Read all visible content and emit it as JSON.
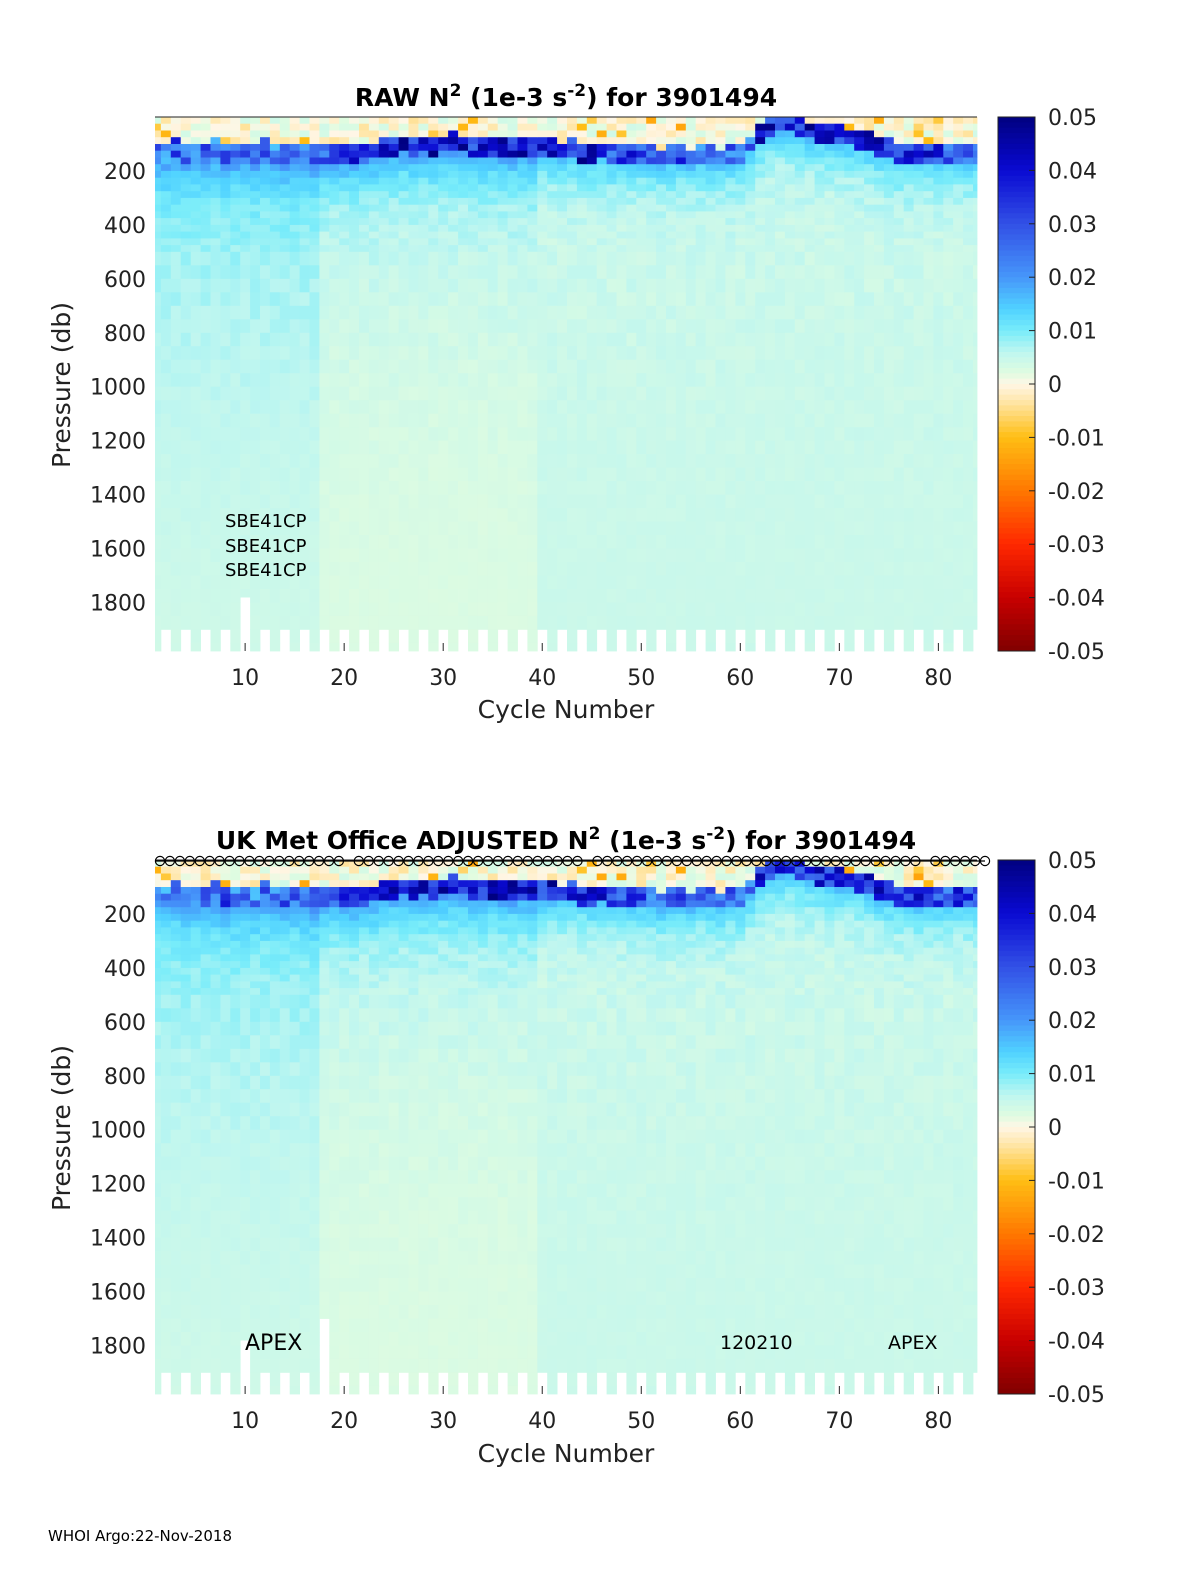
{
  "chart_data": [
    {
      "type": "heatmap",
      "title_parts": [
        "RAW N",
        "2",
        " (1e-3 s",
        "-2",
        ") for 3901494"
      ],
      "xlabel": "Cycle Number",
      "ylabel": "Pressure (db)",
      "xlim": [
        0.9,
        83.9
      ],
      "ylim": [
        0,
        1980
      ],
      "y_reversed": true,
      "xticks": [
        10,
        20,
        30,
        40,
        50,
        60,
        70,
        80
      ],
      "yticks": [
        200,
        400,
        600,
        800,
        1000,
        1200,
        1400,
        1600,
        1800
      ],
      "colorbar": {
        "range": [
          -0.05,
          0.05
        ],
        "ticks": [
          "0.05",
          "0.04",
          "0.03",
          "0.02",
          "0.01",
          "0",
          "-0.01",
          "-0.02",
          "-0.03",
          "-0.04",
          "-0.05"
        ]
      },
      "annotations": [
        "SBE41CP",
        "SBE41CP",
        "SBE41CP"
      ],
      "short_profiles": {
        "10": 1780
      },
      "markers": false
    },
    {
      "type": "heatmap",
      "title_parts": [
        "UK Met Office  ADJUSTED N",
        "2",
        " (1e-3 s",
        "-2",
        ") for 3901494"
      ],
      "xlabel": "Cycle Number",
      "ylabel": "Pressure (db)",
      "xlim": [
        0.9,
        83.9
      ],
      "ylim": [
        0,
        1980
      ],
      "y_reversed": true,
      "xticks": [
        10,
        20,
        30,
        40,
        50,
        60,
        70,
        80
      ],
      "yticks": [
        200,
        400,
        600,
        800,
        1000,
        1200,
        1400,
        1600,
        1800
      ],
      "colorbar": {
        "range": [
          -0.05,
          0.05
        ],
        "ticks": [
          "0.05",
          "0.04",
          "0.03",
          "0.02",
          "0.01",
          "0",
          "-0.01",
          "-0.02",
          "-0.03",
          "-0.04",
          "-0.05"
        ]
      },
      "annotations": [
        "APEX",
        "120210",
        "APEX"
      ],
      "short_profiles": {
        "10": 1780,
        "18": 1700
      },
      "markers": true,
      "missing_markers": [
        20,
        44,
        78
      ]
    }
  ],
  "profile_model": {
    "cycles": 84,
    "pycnocline_pressure_db": [
      125,
      130,
      120,
      135,
      125,
      130,
      120,
      140,
      130,
      125,
      135,
      120,
      130,
      140,
      125,
      130,
      140,
      135,
      130,
      135,
      140,
      130,
      125,
      110,
      105,
      100,
      110,
      100,
      105,
      100,
      95,
      100,
      105,
      110,
      105,
      110,
      115,
      110,
      115,
      120,
      120,
      125,
      120,
      130,
      135,
      125,
      140,
      130,
      140,
      135,
      140,
      150,
      145,
      140,
      150,
      140,
      145,
      150,
      140,
      135,
      100,
      60,
      30,
      25,
      25,
      40,
      50,
      55,
      60,
      70,
      75,
      85,
      95,
      110,
      120,
      130,
      135,
      140,
      135,
      140,
      140,
      130,
      140,
      135
    ],
    "pycnocline_peak_n2": [
      0.035,
      0.03,
      0.04,
      0.035,
      0.03,
      0.035,
      0.03,
      0.04,
      0.03,
      0.035,
      0.03,
      0.035,
      0.03,
      0.04,
      0.035,
      0.03,
      0.035,
      0.04,
      0.035,
      0.04,
      0.045,
      0.04,
      0.045,
      0.05,
      0.05,
      0.05,
      0.05,
      0.05,
      0.05,
      0.05,
      0.05,
      0.05,
      0.05,
      0.05,
      0.05,
      0.05,
      0.05,
      0.05,
      0.05,
      0.05,
      0.05,
      0.05,
      0.05,
      0.05,
      0.05,
      0.045,
      0.04,
      0.04,
      0.045,
      0.04,
      0.035,
      0.035,
      0.035,
      0.04,
      0.035,
      0.035,
      0.035,
      0.03,
      0.035,
      0.03,
      0.035,
      0.05,
      0.05,
      0.05,
      0.05,
      0.05,
      0.05,
      0.05,
      0.05,
      0.05,
      0.05,
      0.05,
      0.05,
      0.05,
      0.045,
      0.045,
      0.045,
      0.045,
      0.045,
      0.045,
      0.04,
      0.045,
      0.04,
      0.04
    ],
    "even_cycle_max_pressure_db": 1900,
    "odd_cycle_max_pressure_db": 1980
  },
  "footer": "WHOI Argo:22-Nov-2018"
}
